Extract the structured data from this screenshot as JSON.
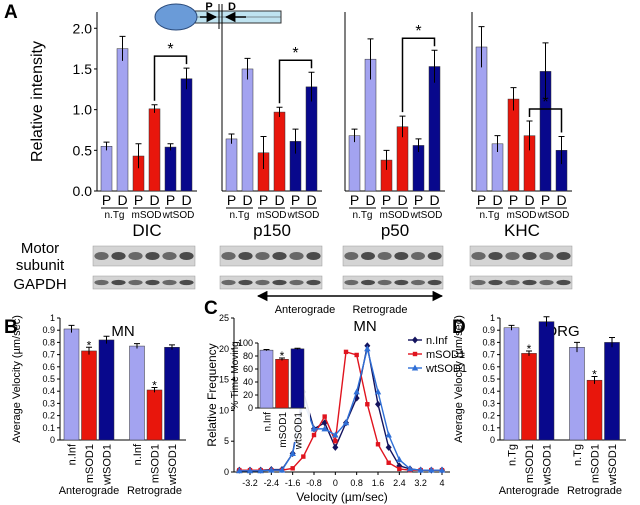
{
  "panel_labels": [
    "A",
    "B",
    "C",
    "D"
  ],
  "diagram": {
    "labels": [
      "P",
      "D"
    ]
  },
  "blots": {
    "row_labels": [
      "Motor subunit",
      "GAPDH"
    ]
  },
  "chart_data": [
    {
      "type": "bar",
      "title": "DIC",
      "ylabel": "Relative intensity",
      "categories": [
        "P",
        "D",
        "P",
        "D",
        "P",
        "D"
      ],
      "groups": [
        "n.Tg",
        "mSOD",
        "wtSOD"
      ],
      "values": [
        0.55,
        1.75,
        0.43,
        1.01,
        0.54,
        1.38
      ],
      "errors": [
        0.05,
        0.15,
        0.15,
        0.05,
        0.04,
        0.13
      ],
      "colors": [
        "#a3a3f0",
        "#a3a3f0",
        "#e8160c",
        "#e8160c",
        "#08088c",
        "#08088c"
      ],
      "ylim": [
        0,
        2.2
      ],
      "yticks": [
        {
          "value": 0,
          "label": "0.0"
        },
        0.5,
        {
          "value": 1,
          "label": "1.0"
        },
        1.5,
        {
          "value": 2,
          "label": "2.0"
        }
      ],
      "significance": "*"
    },
    {
      "type": "bar",
      "title": "p150",
      "categories": [
        "P",
        "D",
        "P",
        "D",
        "P",
        "D"
      ],
      "groups": [
        "n.Tg",
        "mSOD",
        "wtSOD"
      ],
      "values": [
        0.64,
        1.5,
        0.47,
        0.97,
        0.61,
        1.28
      ],
      "errors": [
        0.06,
        0.13,
        0.2,
        0.06,
        0.15,
        0.18
      ],
      "colors": [
        "#a3a3f0",
        "#a3a3f0",
        "#e8160c",
        "#e8160c",
        "#08088c",
        "#08088c"
      ],
      "ylim": [
        0,
        2.2
      ],
      "significance": "*"
    },
    {
      "type": "bar",
      "title": "p50",
      "categories": [
        "P",
        "D",
        "P",
        "D",
        "P",
        "D"
      ],
      "groups": [
        "n.Tg",
        "mSOD",
        "wtSOD"
      ],
      "values": [
        0.68,
        1.62,
        0.38,
        0.79,
        0.56,
        1.53
      ],
      "errors": [
        0.08,
        0.25,
        0.12,
        0.13,
        0.08,
        0.2
      ],
      "colors": [
        "#a3a3f0",
        "#a3a3f0",
        "#e8160c",
        "#e8160c",
        "#08088c",
        "#08088c"
      ],
      "ylim": [
        0,
        2.2
      ],
      "significance": "*"
    },
    {
      "type": "bar",
      "title": "KHC",
      "categories": [
        "P",
        "D",
        "P",
        "D",
        "P",
        "D"
      ],
      "groups": [
        "n.Tg",
        "mSOD",
        "wtSOD"
      ],
      "values": [
        1.77,
        0.58,
        1.13,
        0.68,
        1.47,
        0.5
      ],
      "errors": [
        0.25,
        0.1,
        0.14,
        0.18,
        0.35,
        0.17
      ],
      "colors": [
        "#a3a3f0",
        "#a3a3f0",
        "#e8160c",
        "#e8160c",
        "#08088c",
        "#08088c"
      ],
      "ylim": [
        0,
        2.2
      ],
      "significance": "*"
    },
    {
      "type": "bar",
      "title": "MN",
      "ylabel": "Average Velocity (µm/sec)",
      "categories": [
        "n.Inf",
        "mSOD1",
        "wtSOD1",
        "n.Inf",
        "mSOD1",
        "wtSOD1"
      ],
      "groups": [
        "Anterograde",
        "Retrograde"
      ],
      "values": [
        0.91,
        0.73,
        0.82,
        0.77,
        0.41,
        0.76
      ],
      "errors": [
        0.03,
        0.03,
        0.03,
        0.02,
        0.02,
        0.02
      ],
      "colors": [
        "#a3a3f0",
        "#e8160c",
        "#08088c",
        "#a3a3f0",
        "#e8160c",
        "#08088c"
      ],
      "ylim": [
        0,
        1
      ],
      "yticks": [
        0,
        0.1,
        0.2,
        0.3,
        0.4,
        0.5,
        0.6,
        0.7,
        0.8,
        0.9,
        1
      ],
      "significance": "*"
    },
    {
      "type": "line",
      "title": "MN",
      "direction_labels": [
        "Anterograde",
        "Retrograde"
      ],
      "xlabel": "Velocity (µm/sec)",
      "ylabel": "Relative Frequency",
      "x": [
        -3.6,
        -3.2,
        -2.8,
        -2.4,
        -2.0,
        -1.6,
        -1.2,
        -0.8,
        -0.4,
        0,
        0.4,
        0.8,
        1.2,
        1.6,
        2.0,
        2.4,
        2.8,
        3.2,
        3.6,
        4.0
      ],
      "series": [
        {
          "name": "n.Inf",
          "color": "#13135e",
          "values": [
            0.3,
            0.3,
            0.3,
            0.4,
            0.4,
            3,
            13,
            7,
            8,
            4,
            8,
            12,
            20.5,
            11,
            4,
            1,
            0.5,
            0.3,
            0.3,
            0.3
          ]
        },
        {
          "name": "mSOD1",
          "color": "#e0141e",
          "values": [
            0.3,
            0.3,
            0.3,
            0.3,
            0.3,
            0.6,
            2.5,
            6,
            9,
            5,
            19.5,
            19,
            11,
            4.5,
            1.5,
            0.5,
            0.3,
            0.3,
            0.3,
            0.3
          ]
        },
        {
          "name": "wtSOD1",
          "color": "#2f6fd6",
          "values": [
            0.2,
            0.2,
            0.2,
            0.3,
            0.3,
            3,
            11.5,
            7,
            7,
            6,
            8,
            13,
            20,
            13,
            6,
            2,
            0.5,
            0.3,
            0.3,
            0.3
          ]
        }
      ],
      "xlim": [
        -3.8,
        4.3
      ],
      "xticks": [
        -3.2,
        -2.4,
        -1.6,
        -0.8,
        0,
        0.8,
        1.6,
        2.4,
        3.2,
        4
      ],
      "ylim": [
        0,
        25
      ],
      "yticks": [
        0,
        5,
        10,
        15,
        20,
        25
      ],
      "legend": "upper right"
    },
    {
      "type": "bar",
      "ylabel": "% Time Moving",
      "categories": [
        "n.Inf",
        "mSOD1",
        "wtSOD1"
      ],
      "values": [
        89,
        75,
        91
      ],
      "errors": [
        1,
        2,
        1
      ],
      "colors": [
        "#a3a3f0",
        "#e8160c",
        "#08088c"
      ],
      "ylim": [
        0,
        100
      ],
      "yticks": [
        0,
        20,
        40,
        60,
        80,
        100
      ],
      "significance": "*"
    },
    {
      "type": "bar",
      "title": "DRG",
      "ylabel": "Average Velocity (µm/sec)",
      "categories": [
        "n.Tg",
        "mSOD1",
        "wtSOD1",
        "n.Tg",
        "mSOD1",
        "wtSOD1"
      ],
      "groups": [
        "Anterograde",
        "Retrograde"
      ],
      "values": [
        0.92,
        0.71,
        0.97,
        0.76,
        0.49,
        0.8
      ],
      "errors": [
        0.02,
        0.02,
        0.04,
        0.04,
        0.03,
        0.04
      ],
      "colors": [
        "#a3a3f0",
        "#e8160c",
        "#08088c",
        "#a3a3f0",
        "#e8160c",
        "#08088c"
      ],
      "ylim": [
        0,
        1
      ],
      "yticks": [
        0,
        0.1,
        0.2,
        0.3,
        0.4,
        0.5,
        0.6,
        0.7,
        0.8,
        0.9,
        1
      ],
      "significance": "*"
    }
  ]
}
